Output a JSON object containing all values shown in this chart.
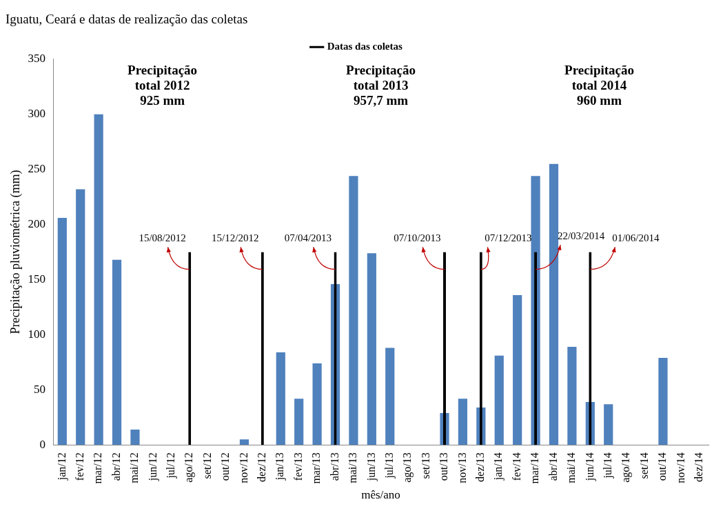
{
  "chart_data": {
    "type": "bar",
    "title": "Iguatu, Ceará e datas de realização das coletas",
    "xlabel": "mês/ano",
    "ylabel": "Precipitação pluviométrica (mm)",
    "categories": [
      "jan/12",
      "fev/12",
      "mar/12",
      "abr/12",
      "mai/12",
      "jun/12",
      "jul/12",
      "ago/12",
      "set/12",
      "out/12",
      "nov/12",
      "dez/12",
      "jan/13",
      "fev/13",
      "mar/13",
      "abr/13",
      "mai/13",
      "jun/13",
      "jul/13",
      "ago/13",
      "set/13",
      "out/13",
      "nov/13",
      "dez/13",
      "jan/14",
      "fev/14",
      "mar/14",
      "abr/14",
      "mai/14",
      "jun/14",
      "jul/14",
      "ago/14",
      "set/14",
      "out/14",
      "nov/14",
      "dez/14"
    ],
    "series": [
      {
        "color": "#4f81bd",
        "values": [
          206,
          232,
          300,
          168,
          14,
          0,
          0,
          0,
          0,
          0,
          5,
          0,
          84,
          42,
          74,
          146,
          244,
          174,
          88,
          0,
          0,
          29,
          42,
          34,
          81,
          136,
          244,
          255,
          89,
          39,
          37,
          0,
          0,
          79,
          0,
          0
        ]
      },
      {
        "name": "Datas das coletas",
        "color": "#000000",
        "values": [
          null,
          null,
          null,
          null,
          null,
          null,
          null,
          175,
          null,
          null,
          null,
          175,
          null,
          null,
          null,
          175,
          null,
          null,
          null,
          null,
          null,
          175,
          null,
          175,
          null,
          null,
          175,
          null,
          null,
          175,
          null,
          null,
          null,
          null,
          null,
          null
        ]
      }
    ],
    "ylim": [
      0,
      350
    ],
    "yticks": [
      0,
      50,
      100,
      150,
      200,
      250,
      300,
      350
    ],
    "grid": false,
    "legend": "top",
    "annotations": [
      "Precipitação\ntotal 2012\n925 mm",
      "Precipitação\ntotal 2013\n957,7 mm",
      "Precipitação\ntotal 2014\n960 mm",
      {
        "text": "15/08/2012",
        "x": "ago/12",
        "y": 175
      },
      {
        "text": "15/12/2012",
        "x": "dez/12",
        "y": 175
      },
      {
        "text": "07/04/2013",
        "x": "abr/13",
        "y": 175
      },
      {
        "text": "07/10/2013",
        "x": "out/13",
        "y": 175
      },
      {
        "text": "07/12/2013",
        "x": "dez/13",
        "y": 175
      },
      {
        "text": "22/03/2014",
        "x": "mar/14",
        "y": 175
      },
      {
        "text": "01/06/2014",
        "x": "jun/14",
        "y": 175
      }
    ]
  }
}
